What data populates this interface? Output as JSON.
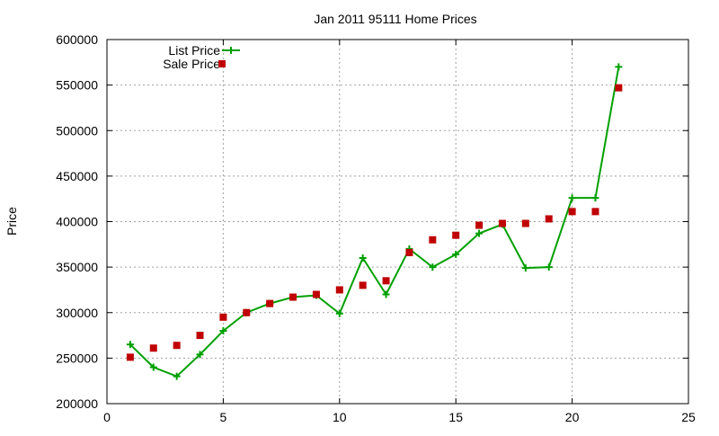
{
  "chart_data": {
    "type": "line",
    "title": "Jan 2011 95111 Home Prices",
    "xlabel": "",
    "ylabel": "Price",
    "xlim": [
      0,
      25
    ],
    "ylim": [
      200000,
      600000
    ],
    "x_ticks": [
      0,
      5,
      10,
      15,
      20,
      25
    ],
    "y_ticks": [
      200000,
      250000,
      300000,
      350000,
      400000,
      450000,
      500000,
      550000,
      600000
    ],
    "grid": true,
    "legend_position": "top-left",
    "series": [
      {
        "name": "List Price",
        "style": "line+cross",
        "color": "#00a000",
        "points": [
          [
            1,
            265000
          ],
          [
            2,
            240000
          ],
          [
            3,
            230000
          ],
          [
            4,
            254000
          ],
          [
            5,
            280000
          ],
          [
            6,
            300000
          ],
          [
            7,
            310000
          ],
          [
            8,
            317000
          ],
          [
            9,
            319000
          ],
          [
            10,
            299000
          ],
          [
            11,
            360000
          ],
          [
            12,
            320000
          ],
          [
            13,
            370000
          ],
          [
            14,
            350000
          ],
          [
            15,
            364000
          ],
          [
            16,
            387000
          ],
          [
            17,
            397000
          ],
          [
            18,
            349000
          ],
          [
            19,
            350000
          ],
          [
            20,
            426000
          ],
          [
            21,
            426000
          ],
          [
            22,
            570000
          ]
        ]
      },
      {
        "name": "Sale Price",
        "style": "square",
        "color": "#c00000",
        "points": [
          [
            1,
            251000
          ],
          [
            2,
            261000
          ],
          [
            3,
            264000
          ],
          [
            4,
            275000
          ],
          [
            5,
            295000
          ],
          [
            6,
            300000
          ],
          [
            7,
            310000
          ],
          [
            8,
            317000
          ],
          [
            9,
            320000
          ],
          [
            10,
            325000
          ],
          [
            11,
            330000
          ],
          [
            12,
            335000
          ],
          [
            13,
            366000
          ],
          [
            14,
            380000
          ],
          [
            15,
            385000
          ],
          [
            16,
            396000
          ],
          [
            17,
            398000
          ],
          [
            18,
            398000
          ],
          [
            19,
            403000
          ],
          [
            20,
            411000
          ],
          [
            21,
            411000
          ],
          [
            22,
            547000
          ]
        ]
      }
    ]
  }
}
